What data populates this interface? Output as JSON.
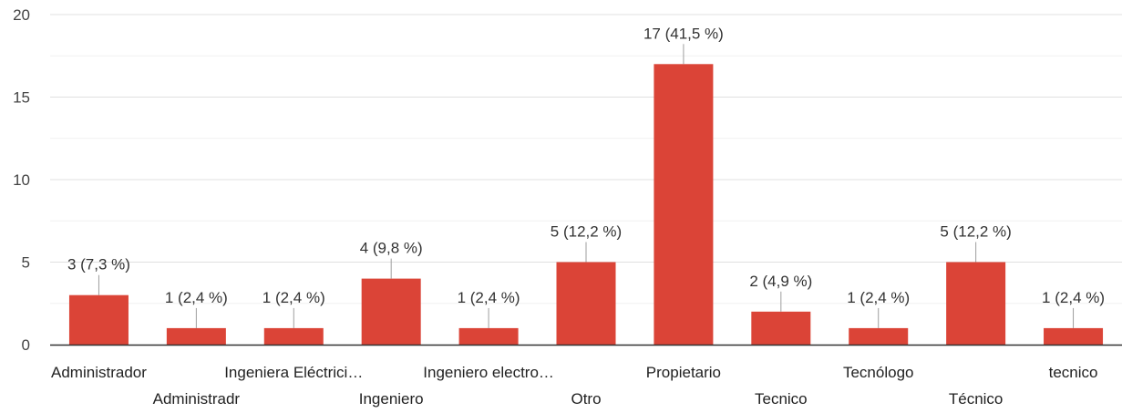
{
  "chart_data": {
    "type": "bar",
    "title": "",
    "xlabel": "",
    "ylabel": "",
    "ylim": [
      0,
      20
    ],
    "yticks": [
      0,
      5,
      10,
      15,
      20
    ],
    "grid": true,
    "bar_color": "#db4437",
    "categories": [
      "Administrador",
      "Administradr",
      "Ingeniera Eléctrici…",
      "Ingeniero",
      "Ingeniero electro…",
      "Otro",
      "Propietario",
      "Tecnico",
      "Tecnólogo",
      "Técnico",
      "tecnico"
    ],
    "values": [
      3,
      1,
      1,
      4,
      1,
      5,
      17,
      2,
      1,
      5,
      1
    ],
    "data_labels": [
      "3 (7,3 %)",
      "1 (2,4 %)",
      "1 (2,4 %)",
      "4 (9,8 %)",
      "1 (2,4 %)",
      "5 (12,2 %)",
      "17 (41,5 %)",
      "2 (4,9 %)",
      "1 (2,4 %)",
      "5 (12,2 %)",
      "1 (2,4 %)"
    ]
  }
}
